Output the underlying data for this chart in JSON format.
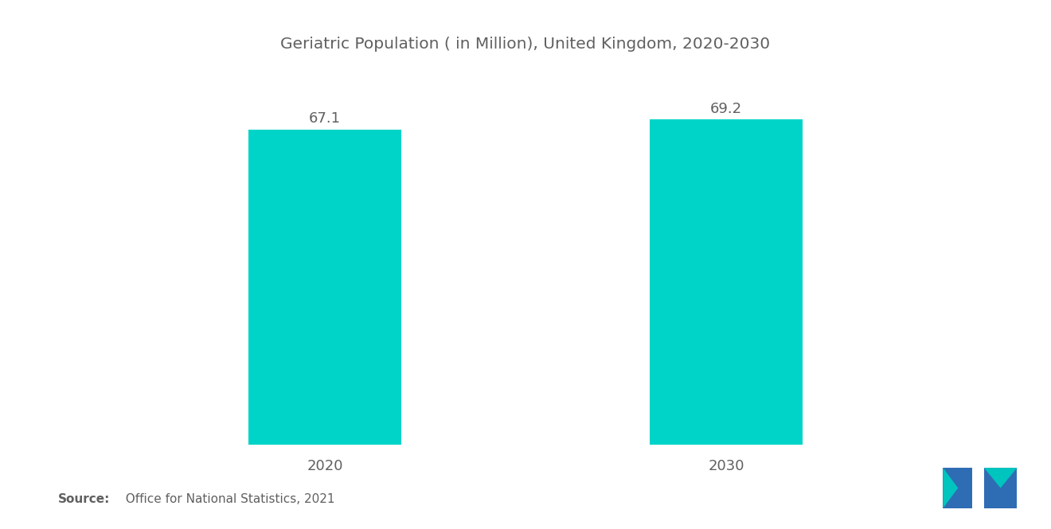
{
  "title": "Geriatric Population ( in Million), United Kingdom, 2020-2030",
  "categories": [
    "2020",
    "2030"
  ],
  "values": [
    67.1,
    69.2
  ],
  "bar_color": "#00D4C8",
  "background_color": "#ffffff",
  "text_color": "#606060",
  "title_fontsize": 14.5,
  "value_fontsize": 13,
  "tick_fontsize": 13,
  "source_bold": "Source:",
  "source_rest": "  Office for National Statistics, 2021",
  "ylim": [
    0,
    80
  ],
  "bar_width": 0.38,
  "logo_blue": "#2E6DB4",
  "logo_teal": "#00C4BE"
}
